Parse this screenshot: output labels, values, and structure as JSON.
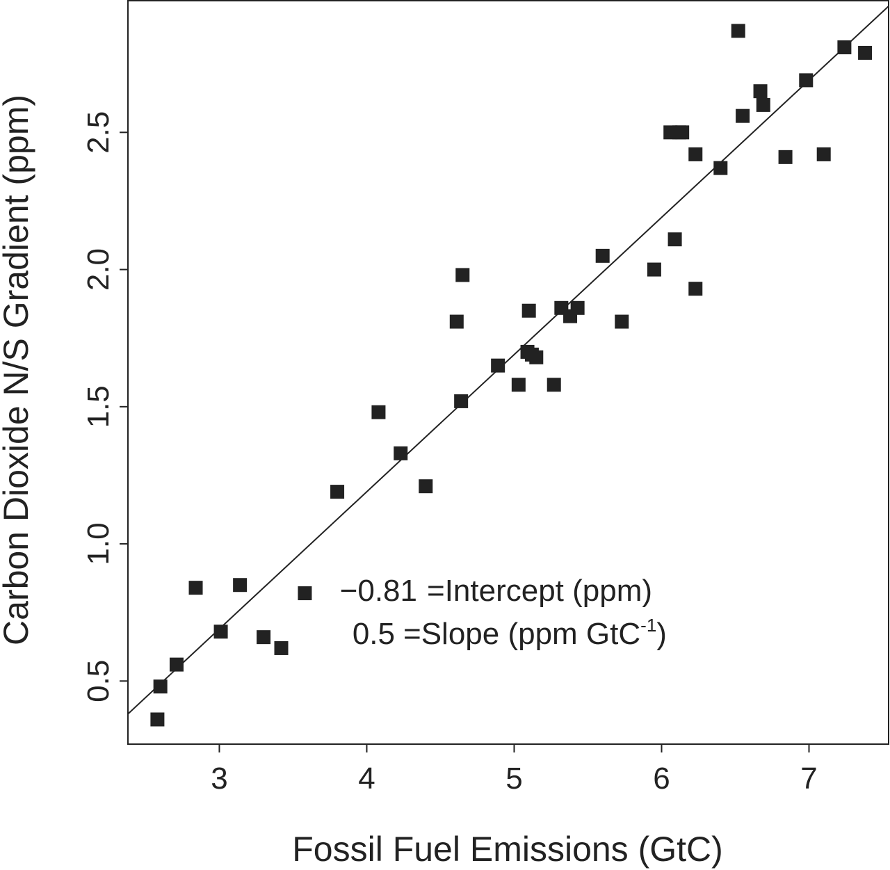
{
  "chart_data": {
    "type": "scatter",
    "title": "",
    "xlabel": "Fossil Fuel Emissions (GtC)",
    "ylabel": "Carbon Dioxide N/S Gradient (ppm)",
    "xlim": [
      2.38,
      7.54
    ],
    "ylim": [
      0.27,
      2.98
    ],
    "x_ticks": [
      3,
      4,
      5,
      6,
      7
    ],
    "x_tick_labels": [
      "3",
      "4",
      "5",
      "6",
      "7"
    ],
    "y_ticks": [
      0.5,
      1.0,
      1.5,
      2.0,
      2.5
    ],
    "y_tick_labels": [
      "0.5",
      "1.0",
      "1.5",
      "2.0",
      "2.5"
    ],
    "grid": false,
    "marker_color": "#222222",
    "line_color": "#222222",
    "series": [
      {
        "points": [
          [
            2.58,
            0.36
          ],
          [
            2.6,
            0.48
          ],
          [
            2.71,
            0.56
          ],
          [
            2.84,
            0.84
          ],
          [
            3.01,
            0.68
          ],
          [
            3.14,
            0.85
          ],
          [
            3.3,
            0.66
          ],
          [
            3.42,
            0.62
          ],
          [
            3.58,
            0.82
          ],
          [
            3.8,
            1.19
          ],
          [
            4.08,
            1.48
          ],
          [
            4.23,
            1.33
          ],
          [
            4.4,
            1.21
          ],
          [
            4.61,
            1.81
          ],
          [
            4.64,
            1.52
          ],
          [
            4.65,
            1.98
          ],
          [
            4.89,
            1.65
          ],
          [
            5.03,
            1.58
          ],
          [
            5.09,
            1.7
          ],
          [
            5.1,
            1.85
          ],
          [
            5.12,
            1.69
          ],
          [
            5.15,
            1.68
          ],
          [
            5.27,
            1.58
          ],
          [
            5.32,
            1.86
          ],
          [
            5.38,
            1.83
          ],
          [
            5.43,
            1.86
          ],
          [
            5.6,
            2.05
          ],
          [
            5.73,
            1.81
          ],
          [
            5.95,
            2.0
          ],
          [
            6.06,
            2.5
          ],
          [
            6.09,
            2.11
          ],
          [
            6.12,
            2.5
          ],
          [
            6.14,
            2.5
          ],
          [
            6.23,
            2.42
          ],
          [
            6.23,
            1.93
          ],
          [
            6.4,
            2.37
          ],
          [
            6.52,
            2.87
          ],
          [
            6.55,
            2.56
          ],
          [
            6.67,
            2.65
          ],
          [
            6.69,
            2.6
          ],
          [
            6.84,
            2.41
          ],
          [
            6.98,
            2.69
          ],
          [
            7.1,
            2.42
          ],
          [
            7.24,
            2.81
          ],
          [
            7.38,
            2.79
          ]
        ]
      }
    ],
    "fit": {
      "intercept": -0.81,
      "slope": 0.5
    },
    "annotation": {
      "intercept_value": "−0.81",
      "intercept_text": "=Intercept (ppm)",
      "slope_value": "0.5",
      "slope_text": "=Slope (ppm GtC",
      "slope_superscript": "-1",
      "slope_close": ")"
    }
  }
}
